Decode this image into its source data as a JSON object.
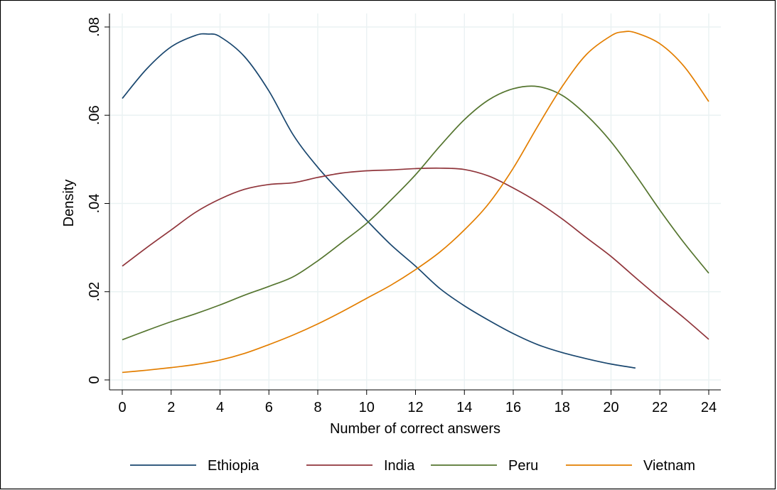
{
  "chart_data": {
    "type": "line",
    "title": "",
    "xlabel": "Number of correct answers",
    "ylabel": "Density",
    "xlim": [
      0,
      24
    ],
    "ylim": [
      0,
      0.08
    ],
    "x_ticks": [
      0,
      2,
      4,
      6,
      8,
      10,
      12,
      14,
      16,
      18,
      20,
      22,
      24
    ],
    "x_tick_labels": [
      "0",
      "2",
      "4",
      "6",
      "8",
      "10",
      "12",
      "14",
      "16",
      "18",
      "20",
      "22",
      "24"
    ],
    "y_ticks": [
      0,
      0.02,
      0.04,
      0.06,
      0.08
    ],
    "y_tick_labels": [
      "0",
      ".02",
      ".04",
      ".06",
      ".08"
    ],
    "grid": true,
    "legend_position": "bottom",
    "series": [
      {
        "name": "Ethiopia",
        "color": "#1a476f",
        "x": [
          0,
          1,
          2,
          3,
          3.5,
          4,
          5,
          6,
          7,
          8,
          9,
          10,
          11,
          12,
          13,
          14,
          15,
          16,
          17,
          18,
          19,
          20,
          21
        ],
        "values": [
          0.0638,
          0.0705,
          0.0755,
          0.0781,
          0.0784,
          0.0778,
          0.0733,
          0.0655,
          0.0555,
          0.0482,
          0.0421,
          0.0362,
          0.0306,
          0.0258,
          0.0207,
          0.0168,
          0.0135,
          0.0105,
          0.008,
          0.0062,
          0.0048,
          0.0036,
          0.0027
        ]
      },
      {
        "name": "India",
        "color": "#90353b",
        "x": [
          0,
          1,
          2,
          3,
          4,
          5,
          6,
          7,
          8,
          9,
          10,
          11,
          12,
          13,
          14,
          15,
          16,
          17,
          18,
          19,
          20,
          21,
          22,
          23,
          24
        ],
        "values": [
          0.0258,
          0.03,
          0.034,
          0.038,
          0.041,
          0.0432,
          0.0443,
          0.0447,
          0.0459,
          0.0469,
          0.0474,
          0.0476,
          0.0479,
          0.048,
          0.0477,
          0.0462,
          0.0435,
          0.0403,
          0.0365,
          0.0322,
          0.028,
          0.0232,
          0.0185,
          0.014,
          0.0092
        ]
      },
      {
        "name": "Peru",
        "color": "#55752f",
        "x": [
          0,
          1,
          2,
          3,
          4,
          5,
          6,
          7,
          8,
          9,
          10,
          11,
          12,
          13,
          14,
          15,
          16,
          17,
          18,
          19,
          20,
          21,
          22,
          23,
          24
        ],
        "values": [
          0.0091,
          0.0112,
          0.0132,
          0.015,
          0.017,
          0.0192,
          0.0212,
          0.0234,
          0.027,
          0.0312,
          0.0355,
          0.0408,
          0.0465,
          0.053,
          0.059,
          0.0635,
          0.066,
          0.0665,
          0.0645,
          0.06,
          0.054,
          0.0465,
          0.0385,
          0.031,
          0.0242
        ]
      },
      {
        "name": "Vietnam",
        "color": "#e37e00",
        "x": [
          0,
          1,
          2,
          3,
          4,
          5,
          6,
          7,
          8,
          9,
          10,
          11,
          12,
          13,
          14,
          15,
          16,
          17,
          18,
          19,
          20,
          20.5,
          21,
          22,
          23,
          24
        ],
        "values": [
          0.0017,
          0.0022,
          0.0028,
          0.0035,
          0.0045,
          0.006,
          0.008,
          0.0102,
          0.0127,
          0.0155,
          0.0185,
          0.0215,
          0.025,
          0.029,
          0.034,
          0.04,
          0.048,
          0.0575,
          0.0665,
          0.0738,
          0.078,
          0.0789,
          0.0787,
          0.0762,
          0.071,
          0.0631
        ]
      }
    ]
  }
}
